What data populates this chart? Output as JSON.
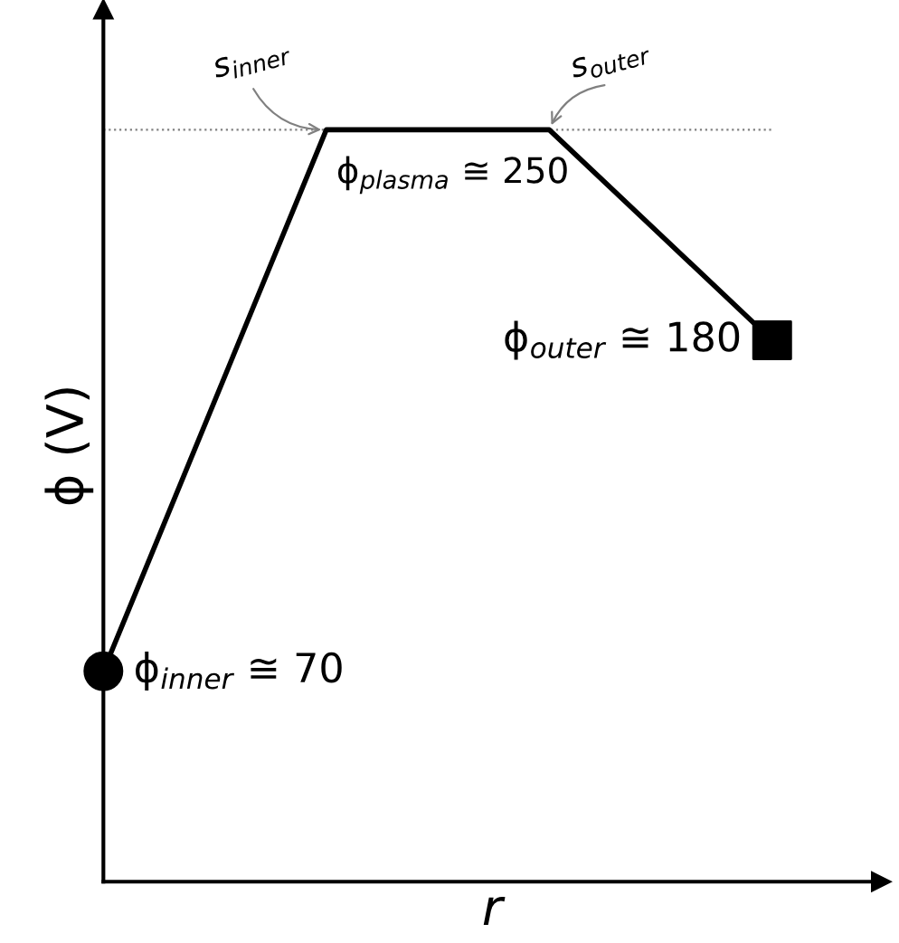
{
  "chart_data": {
    "type": "line",
    "xlabel": "r",
    "ylabel": "ϕ (V)",
    "categories": [
      null,
      null,
      null,
      null
    ],
    "ylim": [
      0,
      290
    ],
    "series": [
      {
        "color": "#000000",
        "values": [
          70,
          250,
          250,
          180
        ],
        "value_labels": [
          "ϕ$_{inner}$ ≅ 70",
          "ϕ$_{plasma}$ ≅ 250",
          null,
          "ϕ$_{outer}$ ≅ 180"
        ]
      }
    ],
    "ref_lines": [
      {
        "axis": "y",
        "value": 250,
        "color": "#808080",
        "line_style": "dotted"
      }
    ],
    "annotations": [
      {
        "text": "s$_{inner}$",
        "y": 250
      },
      {
        "text": "s$_{outer}$",
        "y": 250
      }
    ]
  }
}
